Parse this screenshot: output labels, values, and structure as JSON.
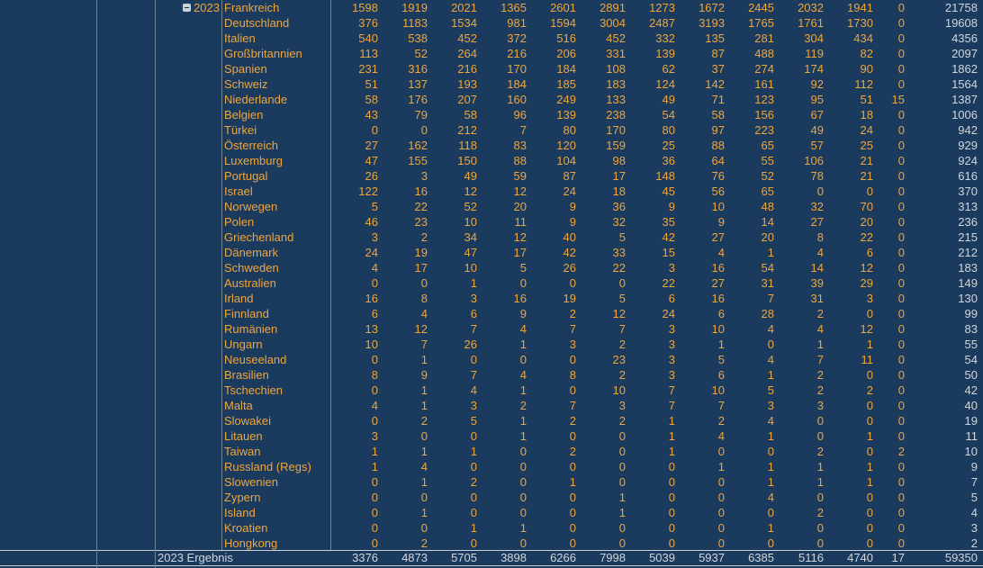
{
  "colors": {
    "background": "#1A3A5E",
    "gridline": "#6F8396",
    "value_text": "#EFA63C",
    "total_text": "#D2D6DA",
    "result_rule": "#C9CFD5"
  },
  "pivot": {
    "year_group": {
      "label": "2023",
      "icon": "minus-box",
      "collapsed": false
    },
    "rows": [
      {
        "country": "Frankreich",
        "values": [
          1598,
          1919,
          2021,
          1365,
          2601,
          2891,
          1273,
          1672,
          2445,
          2032,
          1941,
          0
        ],
        "total": 21758
      },
      {
        "country": "Deutschland",
        "values": [
          376,
          1183,
          1534,
          981,
          1594,
          3004,
          2487,
          3193,
          1765,
          1761,
          1730,
          0
        ],
        "total": 19608
      },
      {
        "country": "Italien",
        "values": [
          540,
          538,
          452,
          372,
          516,
          452,
          332,
          135,
          281,
          304,
          434,
          0
        ],
        "total": 4356
      },
      {
        "country": "Großbritannien",
        "values": [
          113,
          52,
          264,
          216,
          206,
          331,
          139,
          87,
          488,
          119,
          82,
          0
        ],
        "total": 2097
      },
      {
        "country": "Spanien",
        "values": [
          231,
          316,
          216,
          170,
          184,
          108,
          62,
          37,
          274,
          174,
          90,
          0
        ],
        "total": 1862
      },
      {
        "country": "Schweiz",
        "values": [
          51,
          137,
          193,
          184,
          185,
          183,
          124,
          142,
          161,
          92,
          112,
          0
        ],
        "total": 1564
      },
      {
        "country": "Niederlande",
        "values": [
          58,
          176,
          207,
          160,
          249,
          133,
          49,
          71,
          123,
          95,
          51,
          15
        ],
        "total": 1387
      },
      {
        "country": "Belgien",
        "values": [
          43,
          79,
          58,
          96,
          139,
          238,
          54,
          58,
          156,
          67,
          18,
          0
        ],
        "total": 1006
      },
      {
        "country": "Türkei",
        "values": [
          0,
          0,
          212,
          7,
          80,
          170,
          80,
          97,
          223,
          49,
          24,
          0
        ],
        "total": 942
      },
      {
        "country": "Österreich",
        "values": [
          27,
          162,
          118,
          83,
          120,
          159,
          25,
          88,
          65,
          57,
          25,
          0
        ],
        "total": 929
      },
      {
        "country": "Luxemburg",
        "values": [
          47,
          155,
          150,
          88,
          104,
          98,
          36,
          64,
          55,
          106,
          21,
          0
        ],
        "total": 924
      },
      {
        "country": "Portugal",
        "values": [
          26,
          3,
          49,
          59,
          87,
          17,
          148,
          76,
          52,
          78,
          21,
          0
        ],
        "total": 616
      },
      {
        "country": "Israel",
        "values": [
          122,
          16,
          12,
          12,
          24,
          18,
          45,
          56,
          65,
          0,
          0,
          0
        ],
        "total": 370
      },
      {
        "country": "Norwegen",
        "values": [
          5,
          22,
          52,
          20,
          9,
          36,
          9,
          10,
          48,
          32,
          70,
          0
        ],
        "total": 313
      },
      {
        "country": "Polen",
        "values": [
          46,
          23,
          10,
          11,
          9,
          32,
          35,
          9,
          14,
          27,
          20,
          0
        ],
        "total": 236
      },
      {
        "country": "Griechenland",
        "values": [
          3,
          2,
          34,
          12,
          40,
          5,
          42,
          27,
          20,
          8,
          22,
          0
        ],
        "total": 215
      },
      {
        "country": "Dänemark",
        "values": [
          24,
          19,
          47,
          17,
          42,
          33,
          15,
          4,
          1,
          4,
          6,
          0
        ],
        "total": 212
      },
      {
        "country": "Schweden",
        "values": [
          4,
          17,
          10,
          5,
          26,
          22,
          3,
          16,
          54,
          14,
          12,
          0
        ],
        "total": 183
      },
      {
        "country": "Australien",
        "values": [
          0,
          0,
          1,
          0,
          0,
          0,
          22,
          27,
          31,
          39,
          29,
          0
        ],
        "total": 149
      },
      {
        "country": "Irland",
        "values": [
          16,
          8,
          3,
          16,
          19,
          5,
          6,
          16,
          7,
          31,
          3,
          0
        ],
        "total": 130
      },
      {
        "country": "Finnland",
        "values": [
          6,
          4,
          6,
          9,
          2,
          12,
          24,
          6,
          28,
          2,
          0,
          0
        ],
        "total": 99
      },
      {
        "country": "Rumänien",
        "values": [
          13,
          12,
          7,
          4,
          7,
          7,
          3,
          10,
          4,
          4,
          12,
          0
        ],
        "total": 83
      },
      {
        "country": "Ungarn",
        "values": [
          10,
          7,
          26,
          1,
          3,
          2,
          3,
          1,
          0,
          1,
          1,
          0
        ],
        "total": 55
      },
      {
        "country": "Neuseeland",
        "values": [
          0,
          1,
          0,
          0,
          0,
          23,
          3,
          5,
          4,
          7,
          11,
          0
        ],
        "total": 54
      },
      {
        "country": "Brasilien",
        "values": [
          8,
          9,
          7,
          4,
          8,
          2,
          3,
          6,
          1,
          2,
          0,
          0
        ],
        "total": 50
      },
      {
        "country": "Tschechien",
        "values": [
          0,
          1,
          4,
          1,
          0,
          10,
          7,
          10,
          5,
          2,
          2,
          0
        ],
        "total": 42
      },
      {
        "country": "Malta",
        "values": [
          4,
          1,
          3,
          2,
          7,
          3,
          7,
          7,
          3,
          3,
          0,
          0
        ],
        "total": 40
      },
      {
        "country": "Slowakei",
        "values": [
          0,
          2,
          5,
          1,
          2,
          2,
          1,
          2,
          4,
          0,
          0,
          0
        ],
        "total": 19
      },
      {
        "country": "Litauen",
        "values": [
          3,
          0,
          0,
          1,
          0,
          0,
          1,
          4,
          1,
          0,
          1,
          0
        ],
        "total": 11
      },
      {
        "country": "Taiwan",
        "values": [
          1,
          1,
          1,
          0,
          2,
          0,
          1,
          0,
          0,
          2,
          0,
          2
        ],
        "total": 10
      },
      {
        "country": "Russland (Regs)",
        "values": [
          1,
          4,
          0,
          0,
          0,
          0,
          0,
          1,
          1,
          1,
          1,
          0
        ],
        "total": 9
      },
      {
        "country": "Slowenien",
        "values": [
          0,
          1,
          2,
          0,
          1,
          0,
          0,
          0,
          1,
          1,
          1,
          0
        ],
        "total": 7
      },
      {
        "country": "Zypern",
        "values": [
          0,
          0,
          0,
          0,
          0,
          1,
          0,
          0,
          4,
          0,
          0,
          0
        ],
        "total": 5
      },
      {
        "country": "Island",
        "values": [
          0,
          1,
          0,
          0,
          0,
          1,
          0,
          0,
          0,
          2,
          0,
          0
        ],
        "total": 4
      },
      {
        "country": "Kroatien",
        "values": [
          0,
          0,
          1,
          1,
          0,
          0,
          0,
          0,
          1,
          0,
          0,
          0
        ],
        "total": 3
      },
      {
        "country": "Hongkong",
        "values": [
          0,
          2,
          0,
          0,
          0,
          0,
          0,
          0,
          0,
          0,
          0,
          0
        ],
        "total": 2
      }
    ],
    "result_row": {
      "label": "2023 Ergebnis",
      "values": [
        3376,
        4873,
        5705,
        3898,
        6266,
        7998,
        5039,
        5937,
        6385,
        5116,
        4740,
        17
      ],
      "total": 59350
    }
  }
}
